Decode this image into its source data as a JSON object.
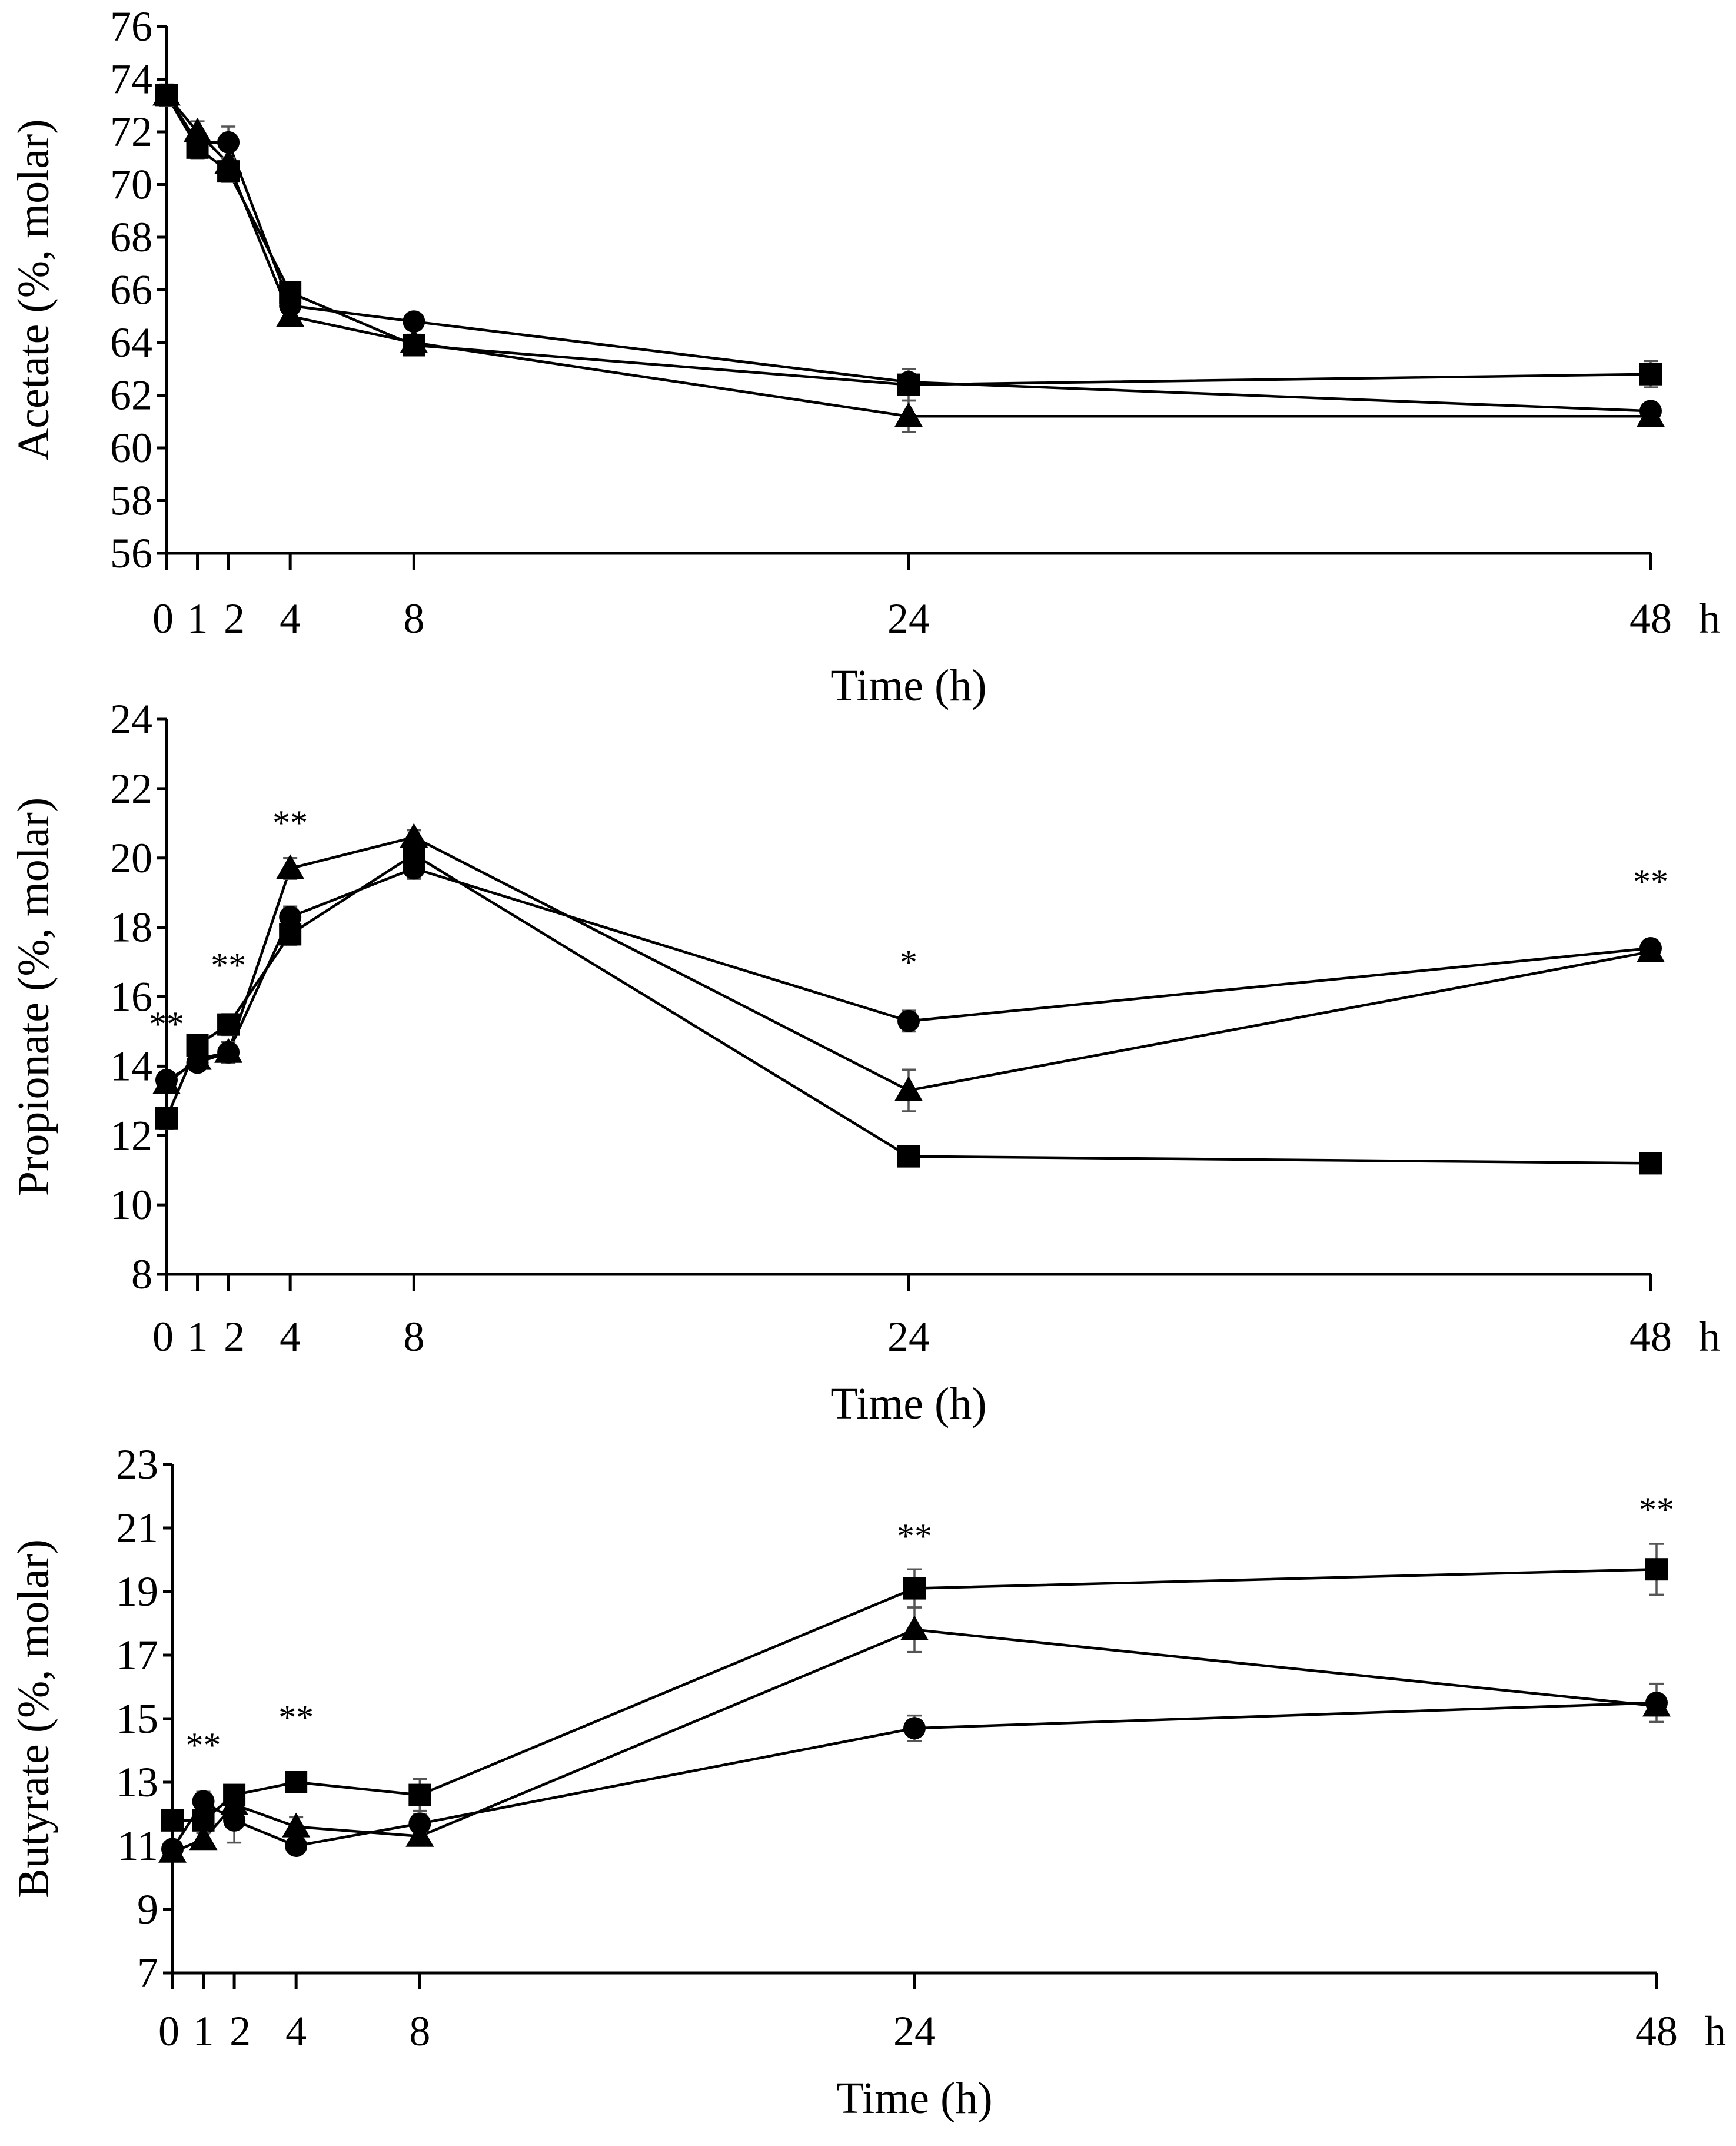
{
  "chart_data": [
    {
      "type": "line",
      "ylabel": "Acetate (%, molar)",
      "xlabel": "Time (h)",
      "x_unit_label": "h",
      "x": [
        0,
        1,
        2,
        4,
        8,
        24,
        48
      ],
      "x_tick_labels": [
        "0",
        "1",
        "2",
        "4",
        "8",
        "24",
        "48"
      ],
      "ylim": [
        56,
        76
      ],
      "y_ticks": [
        56,
        58,
        60,
        62,
        64,
        66,
        68,
        70,
        72,
        74,
        76
      ],
      "series": [
        {
          "name": "circle",
          "marker": "circle",
          "values": [
            73.4,
            71.6,
            71.6,
            65.4,
            64.8,
            62.5,
            61.4
          ],
          "errors": [
            0.3,
            0.4,
            0.6,
            0.3,
            0.3,
            0.3,
            0.3
          ]
        },
        {
          "name": "triangle",
          "marker": "triangle",
          "values": [
            73.4,
            72.0,
            70.8,
            65.0,
            64.0,
            61.2,
            61.2
          ],
          "errors": [
            0.3,
            0.4,
            0.6,
            0.3,
            0.3,
            0.6,
            0.3
          ]
        },
        {
          "name": "square",
          "marker": "square",
          "values": [
            73.4,
            71.4,
            70.5,
            65.9,
            63.9,
            62.4,
            62.8
          ],
          "errors": [
            0.4,
            0.4,
            0.4,
            0.4,
            0.3,
            0.6,
            0.5
          ]
        }
      ],
      "significance": []
    },
    {
      "type": "line",
      "ylabel": "Propionate (%, molar)",
      "xlabel": "Time (h)",
      "x_unit_label": "h",
      "x": [
        0,
        1,
        2,
        4,
        8,
        24,
        48
      ],
      "x_tick_labels": [
        "0",
        "1",
        "2",
        "4",
        "8",
        "24",
        "48"
      ],
      "ylim": [
        8,
        24
      ],
      "y_ticks": [
        8,
        10,
        12,
        14,
        16,
        18,
        20,
        22,
        24
      ],
      "series": [
        {
          "name": "circle",
          "marker": "circle",
          "values": [
            13.6,
            14.1,
            14.4,
            18.3,
            19.7,
            15.3,
            17.4
          ],
          "errors": [
            0.2,
            0.2,
            0.3,
            0.3,
            0.3,
            0.3,
            0.2
          ]
        },
        {
          "name": "triangle",
          "marker": "triangle",
          "values": [
            13.5,
            14.2,
            14.4,
            19.7,
            20.6,
            13.3,
            17.3
          ],
          "errors": [
            0.2,
            0.2,
            0.3,
            0.3,
            0.2,
            0.6,
            0.2
          ]
        },
        {
          "name": "square",
          "marker": "square",
          "values": [
            12.5,
            14.6,
            15.2,
            17.8,
            20.1,
            11.4,
            11.2
          ],
          "errors": [
            0.3,
            0.3,
            0.3,
            0.3,
            0.3,
            0.2,
            0.2
          ]
        }
      ],
      "significance": [
        {
          "x": 0,
          "label": "**"
        },
        {
          "x": 2,
          "label": "**"
        },
        {
          "x": 4,
          "label": "**"
        },
        {
          "x": 24,
          "label": "*"
        },
        {
          "x": 48,
          "label": "**"
        }
      ]
    },
    {
      "type": "line",
      "ylabel": "Butyrate (%, molar)",
      "xlabel": "Time (h)",
      "x_unit_label": "h",
      "x": [
        0,
        1,
        2,
        4,
        8,
        24,
        48
      ],
      "x_tick_labels": [
        "0",
        "1",
        "2",
        "4",
        "8",
        "24",
        "48"
      ],
      "ylim": [
        7,
        23
      ],
      "y_ticks": [
        7,
        9,
        11,
        13,
        15,
        17,
        19,
        21,
        23
      ],
      "series": [
        {
          "name": "circle",
          "marker": "circle",
          "values": [
            10.9,
            12.4,
            11.8,
            11.0,
            11.7,
            14.7,
            15.5
          ],
          "errors": [
            0.2,
            0.3,
            0.7,
            0.2,
            0.3,
            0.4,
            0.6
          ]
        },
        {
          "name": "triangle",
          "marker": "triangle",
          "values": [
            10.8,
            11.2,
            12.3,
            11.6,
            11.3,
            17.8,
            15.4
          ],
          "errors": [
            0.2,
            0.2,
            0.4,
            0.3,
            0.2,
            0.7,
            0.3
          ]
        },
        {
          "name": "square",
          "marker": "square",
          "values": [
            11.8,
            11.8,
            12.6,
            13.0,
            12.6,
            19.1,
            19.7
          ],
          "errors": [
            0.3,
            0.3,
            0.3,
            0.2,
            0.5,
            0.6,
            0.8
          ]
        }
      ],
      "significance": [
        {
          "x": 1,
          "label": "**"
        },
        {
          "x": 4,
          "label": "**"
        },
        {
          "x": 24,
          "label": "**"
        },
        {
          "x": 48,
          "label": "**"
        }
      ]
    }
  ]
}
